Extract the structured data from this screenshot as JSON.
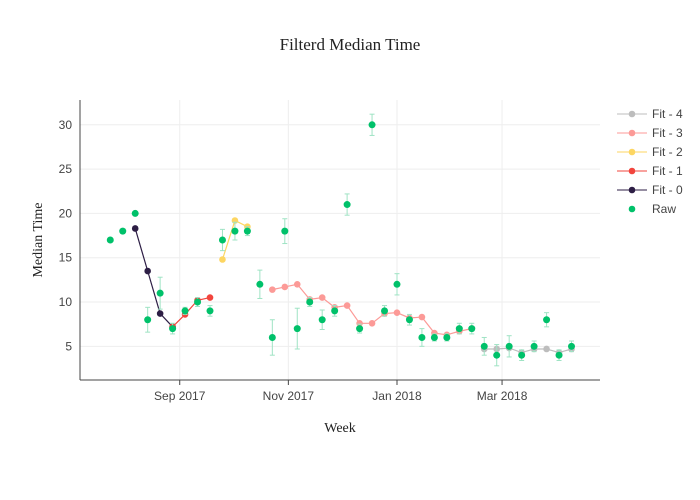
{
  "chart_data": {
    "type": "scatter",
    "title": "Filterd Median Time",
    "xlabel": "Week",
    "ylabel": "Median Time",
    "xlim": [
      "2017-07-07",
      "2018-04-25"
    ],
    "ylim": [
      1.2,
      32.8
    ],
    "xticks": [
      {
        "date": "2017-09-01",
        "label": "Sep 2017"
      },
      {
        "date": "2017-11-01",
        "label": "Nov 2017"
      },
      {
        "date": "2018-01-01",
        "label": "Jan 2018"
      },
      {
        "date": "2018-03-01",
        "label": "Mar 2018"
      }
    ],
    "yticks": [
      5,
      10,
      15,
      20,
      25,
      30
    ],
    "grid": true,
    "legend_position": "right",
    "raw": {
      "name": "Raw",
      "color": "#00c16a",
      "start": "2017-07-24",
      "values": [
        17,
        18,
        20,
        8,
        11,
        7,
        9,
        10,
        9,
        17,
        18,
        18,
        12,
        6,
        18,
        7,
        10,
        8,
        9,
        21,
        7,
        30,
        9,
        12,
        8,
        6,
        6,
        6,
        7,
        7,
        5,
        4,
        5,
        4,
        5,
        8,
        4,
        5
      ],
      "errors": [
        0,
        0,
        0,
        1.4,
        1.8,
        0.6,
        0.4,
        0.5,
        0.6,
        1.2,
        1.0,
        0.5,
        1.6,
        2.0,
        1.4,
        2.3,
        0.5,
        1.1,
        0.6,
        1.2,
        0.5,
        1.2,
        0.6,
        1.2,
        0.6,
        1.0,
        0.4,
        0.4,
        0.6,
        0.6,
        1.0,
        1.2,
        1.2,
        0.6,
        0.6,
        0.8,
        0.6,
        0.6
      ]
    },
    "fits": [
      {
        "name": "Fit - 0",
        "color": "#2d1e45",
        "start": "2017-08-07",
        "values": [
          18.3,
          13.5,
          8.7,
          7.2
        ]
      },
      {
        "name": "Fit - 1",
        "color": "#f2453d",
        "start": "2017-08-28",
        "values": [
          7.2,
          8.6,
          10.2,
          10.5
        ]
      },
      {
        "name": "Fit - 2",
        "color": "#fdd662",
        "start": "2017-09-25",
        "values": [
          14.8,
          19.2,
          18.5
        ]
      },
      {
        "name": "Fit - 3",
        "color": "#fc9a97",
        "start": "2017-10-23",
        "values": [
          11.4,
          11.7,
          12,
          10.3,
          10.5,
          9.4,
          9.6,
          7.6,
          7.6,
          8.7,
          8.8,
          8.2,
          8.3,
          6.5,
          6.3,
          6.7,
          7.0
        ]
      },
      {
        "name": "Fit - 4",
        "color": "#bdbdbd",
        "start": "2018-02-19",
        "values": [
          4.7,
          4.7,
          4.8,
          4.3,
          4.7,
          4.7,
          4.3,
          4.7
        ]
      }
    ]
  }
}
